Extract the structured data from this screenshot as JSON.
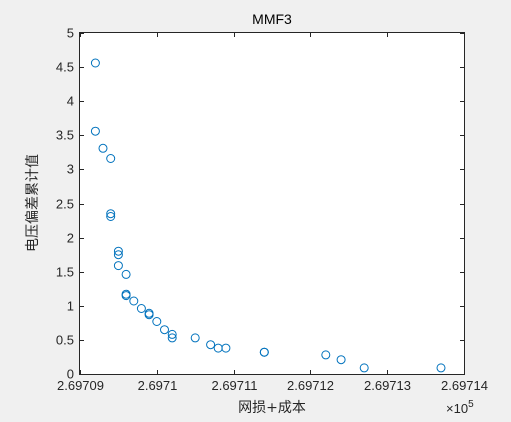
{
  "chart_data": {
    "type": "scatter",
    "title": "MMF3",
    "xlabel": "网损+成本",
    "ylabel": "电压偏差累计值",
    "x_multiplier_label": "×10",
    "x_multiplier_exponent": "5",
    "xlim": [
      2.69709,
      2.69714
    ],
    "ylim": [
      0,
      5
    ],
    "xticks": [
      2.69709,
      2.6971,
      2.69711,
      2.69712,
      2.69713,
      2.69714
    ],
    "xtick_labels": [
      "2.69709",
      "2.6971",
      "2.69711",
      "2.69712",
      "2.69713",
      "2.69714"
    ],
    "yticks": [
      0,
      0.5,
      1,
      1.5,
      2,
      2.5,
      3,
      3.5,
      4,
      4.5,
      5
    ],
    "ytick_labels": [
      "0",
      "0.5",
      "1",
      "1.5",
      "2",
      "2.5",
      "3",
      "3.5",
      "4",
      "4.5",
      "5"
    ],
    "grid": false,
    "marker_color": "#0072bd",
    "series": [
      {
        "points": [
          [
            2.697092,
            4.56
          ],
          [
            2.697092,
            3.56
          ],
          [
            2.697093,
            3.31
          ],
          [
            2.697094,
            3.16
          ],
          [
            2.697094,
            2.35
          ],
          [
            2.697094,
            2.31
          ],
          [
            2.697095,
            1.8
          ],
          [
            2.697095,
            1.75
          ],
          [
            2.697095,
            1.59
          ],
          [
            2.697096,
            1.46
          ],
          [
            2.697096,
            1.17
          ],
          [
            2.697096,
            1.15
          ],
          [
            2.697097,
            1.07
          ],
          [
            2.697098,
            0.96
          ],
          [
            2.697099,
            0.89
          ],
          [
            2.697099,
            0.87
          ],
          [
            2.6971,
            0.77
          ],
          [
            2.697101,
            0.65
          ],
          [
            2.697102,
            0.58
          ],
          [
            2.697102,
            0.53
          ],
          [
            2.697105,
            0.53
          ],
          [
            2.697107,
            0.43
          ],
          [
            2.697108,
            0.38
          ],
          [
            2.697109,
            0.38
          ],
          [
            2.697114,
            0.32
          ],
          [
            2.697114,
            0.32
          ],
          [
            2.697122,
            0.28
          ],
          [
            2.697124,
            0.21
          ],
          [
            2.697127,
            0.09
          ],
          [
            2.697137,
            0.09
          ]
        ]
      }
    ]
  }
}
